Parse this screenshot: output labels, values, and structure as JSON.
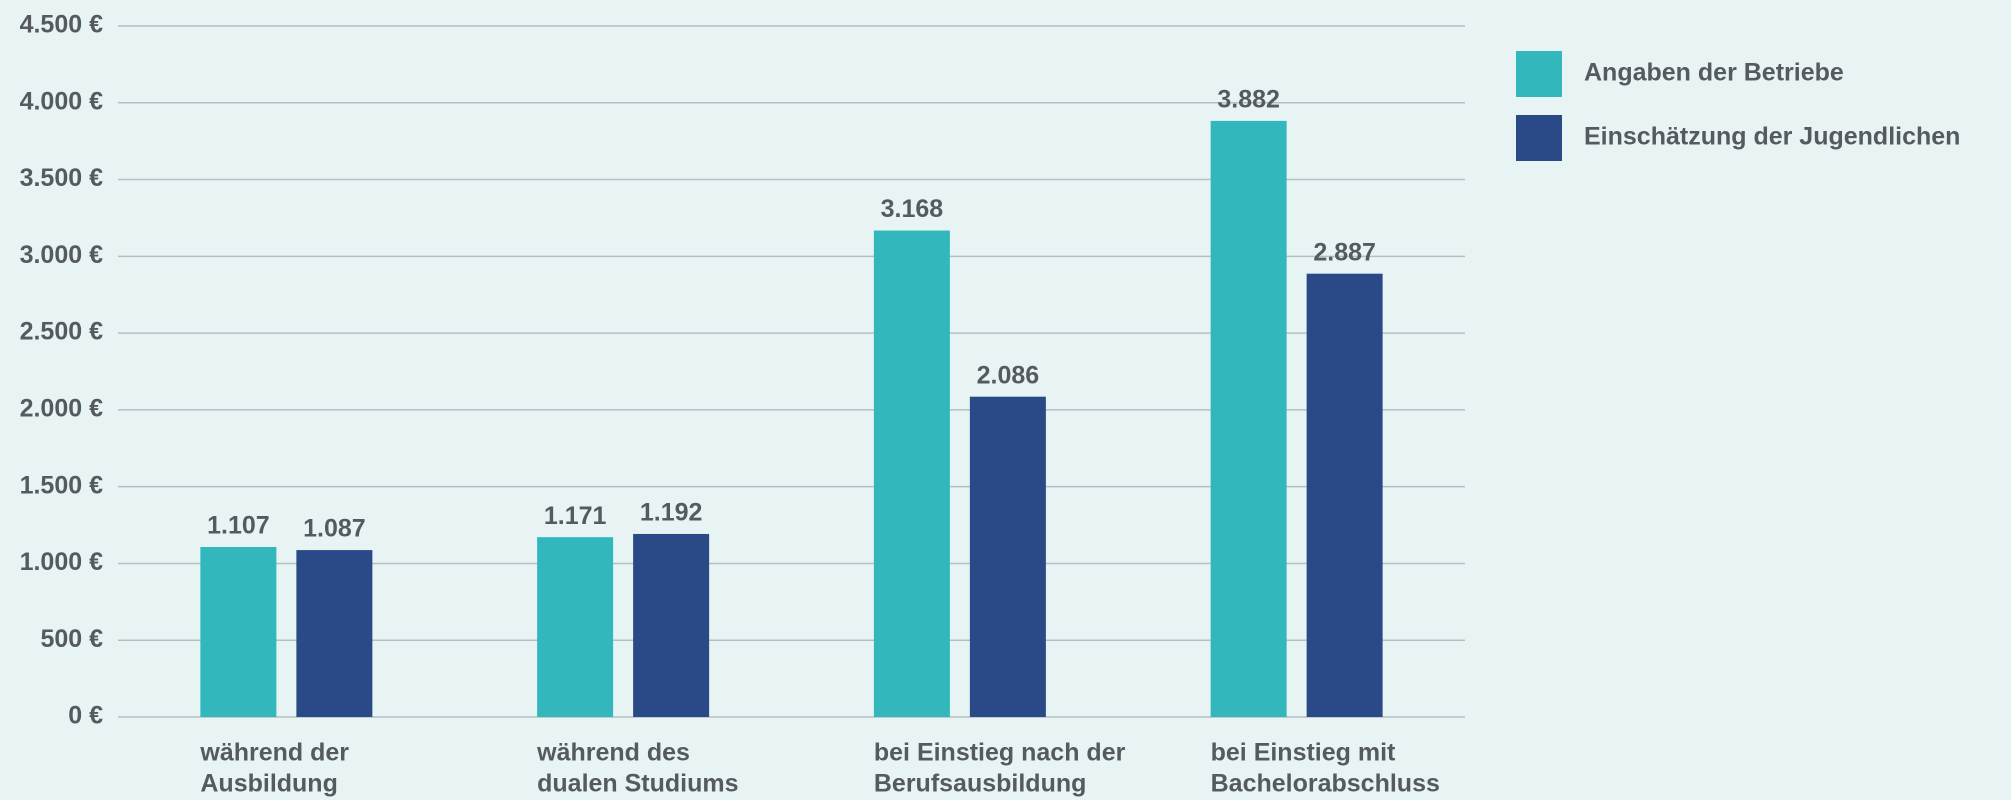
{
  "chart_data": {
    "type": "bar",
    "categories": [
      [
        "während der",
        "Ausbildung"
      ],
      [
        "während des",
        "dualen Studiums"
      ],
      [
        "bei Einstieg nach der",
        "Berufsausbildung"
      ],
      [
        "bei Einstieg mit",
        "Bachelorabschluss"
      ]
    ],
    "series": [
      {
        "name": "Angaben der Betriebe",
        "color": "#31b7bc",
        "values": [
          1107,
          1171,
          3168,
          3882
        ],
        "value_labels": [
          "1.107",
          "1.171",
          "3.168",
          "3.882"
        ]
      },
      {
        "name": "Einschätzung der Jugendlichen",
        "color": "#2a4a87",
        "values": [
          1087,
          1192,
          2086,
          2887
        ],
        "value_labels": [
          "1.087",
          "1.192",
          "2.086",
          "2.887"
        ]
      }
    ],
    "ylim": [
      0,
      4500
    ],
    "yticks": [
      {
        "value": 0,
        "label": "0 €"
      },
      {
        "value": 500,
        "label": "500 €"
      },
      {
        "value": 1000,
        "label": "1.000 €"
      },
      {
        "value": 1500,
        "label": "1.500 €"
      },
      {
        "value": 2000,
        "label": "2.000 €"
      },
      {
        "value": 2500,
        "label": "2.500 €"
      },
      {
        "value": 3000,
        "label": "3.000 €"
      },
      {
        "value": 3500,
        "label": "3.500 €"
      },
      {
        "value": 4000,
        "label": "4.000 €"
      },
      {
        "value": 4500,
        "label": "4.500 €"
      }
    ],
    "grid": true,
    "legend": "right"
  }
}
